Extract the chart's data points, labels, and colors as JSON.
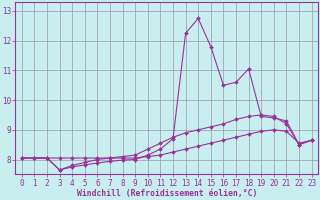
{
  "xlabel": "Windchill (Refroidissement éolien,°C)",
  "background_color": "#c8eef0",
  "line_color": "#993399",
  "grid_color": "#9999aa",
  "xlim": [
    -0.5,
    23.5
  ],
  "ylim": [
    7.5,
    13.3
  ],
  "xticks": [
    0,
    1,
    2,
    3,
    4,
    5,
    6,
    7,
    8,
    9,
    10,
    11,
    12,
    13,
    14,
    15,
    16,
    17,
    18,
    19,
    20,
    21,
    22,
    23
  ],
  "yticks": [
    8,
    9,
    10,
    11,
    12,
    13
  ],
  "series": [
    [
      8.05,
      8.05,
      8.05,
      8.05,
      8.05,
      8.05,
      8.05,
      8.05,
      8.05,
      8.05,
      8.1,
      8.15,
      8.25,
      8.35,
      8.45,
      8.55,
      8.65,
      8.75,
      8.85,
      8.95,
      9.0,
      8.95,
      8.55,
      8.65
    ],
    [
      8.05,
      8.05,
      8.05,
      7.65,
      7.75,
      7.82,
      7.88,
      7.94,
      7.98,
      8.0,
      8.15,
      8.35,
      8.7,
      12.25,
      12.75,
      11.8,
      10.5,
      10.6,
      11.05,
      9.45,
      9.4,
      9.3,
      8.5,
      8.65
    ],
    [
      8.05,
      8.05,
      8.05,
      7.65,
      7.8,
      7.9,
      8.0,
      8.05,
      8.1,
      8.15,
      8.35,
      8.55,
      8.75,
      8.9,
      9.0,
      9.1,
      9.2,
      9.35,
      9.45,
      9.5,
      9.45,
      9.2,
      8.5,
      8.65
    ]
  ]
}
